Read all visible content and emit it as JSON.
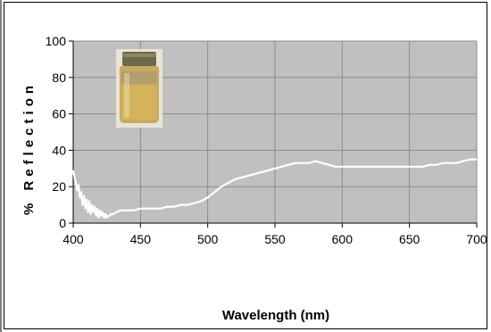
{
  "chart_data": {
    "type": "line",
    "title": "",
    "xlabel": "Wavelength (nm)",
    "ylabel": "% Reflection",
    "xlim": [
      400,
      700
    ],
    "ylim": [
      0,
      100
    ],
    "x_ticks": [
      400,
      450,
      500,
      550,
      600,
      650,
      700
    ],
    "y_ticks": [
      0,
      20,
      40,
      60,
      80,
      100
    ],
    "grid": true,
    "legend": "none",
    "colors": {
      "plot_background": "#c0c0c0",
      "series": "#ffffff",
      "gridline": "#8c8c8c"
    },
    "inset_image": "jar-of-yellow-powder",
    "series": [
      {
        "x": [
          400,
          401,
          402,
          403,
          404,
          405,
          406,
          407,
          408,
          409,
          410,
          411,
          412,
          413,
          414,
          415,
          416,
          417,
          418,
          419,
          420,
          421,
          422,
          423,
          424,
          425,
          426,
          427,
          428,
          430,
          432,
          435,
          440,
          445,
          450,
          455,
          460,
          465,
          470,
          475,
          480,
          485,
          490,
          495,
          500,
          505,
          510,
          515,
          520,
          525,
          530,
          535,
          540,
          545,
          550,
          555,
          560,
          565,
          570,
          575,
          580,
          585,
          590,
          595,
          600,
          605,
          610,
          615,
          620,
          625,
          630,
          635,
          640,
          645,
          650,
          655,
          660,
          665,
          670,
          675,
          680,
          685,
          690,
          695,
          700
        ],
        "values": [
          29,
          25,
          22,
          18,
          21,
          14,
          17,
          10,
          15,
          8,
          13,
          6,
          12,
          5,
          10,
          6,
          9,
          4,
          8,
          3,
          7,
          4,
          6,
          3,
          5,
          3,
          4,
          4,
          5,
          5,
          6,
          7,
          7,
          7,
          8,
          8,
          8,
          8,
          9,
          9,
          10,
          10,
          11,
          12,
          14,
          17,
          20,
          22,
          24,
          25,
          26,
          27,
          28,
          29,
          30,
          31,
          32,
          33,
          33,
          33,
          34,
          33,
          32,
          31,
          31,
          31,
          31,
          31,
          31,
          31,
          31,
          31,
          31,
          31,
          31,
          31,
          31,
          32,
          32,
          33,
          33,
          33,
          34,
          35,
          35
        ]
      }
    ]
  }
}
